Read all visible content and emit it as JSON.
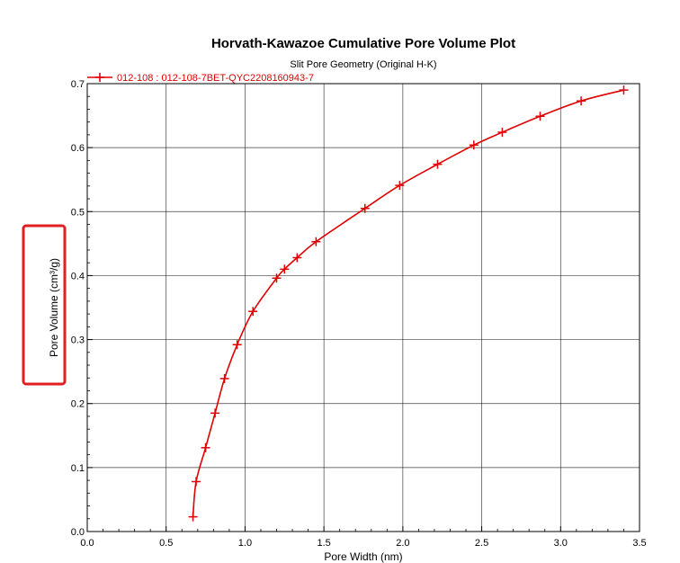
{
  "chart_data": {
    "type": "line",
    "title": "Horvath-Kawazoe Cumulative Pore Volume Plot",
    "subtitle": "Slit Pore Geometry (Original H-K)",
    "xlabel": "Pore Width (nm)",
    "ylabel": "Pore Volume (cm³/g)",
    "xlim": [
      0.0,
      3.5
    ],
    "ylim": [
      0.0,
      0.7
    ],
    "x_ticks": [
      "0.0",
      "0.5",
      "1.0",
      "1.5",
      "2.0",
      "2.5",
      "3.0",
      "3.5"
    ],
    "y_ticks": [
      "0.0",
      "0.1",
      "0.2",
      "0.3",
      "0.4",
      "0.5",
      "0.6",
      "0.7"
    ],
    "grid": true,
    "legend_position": "top-left",
    "highlight": "ylabel",
    "colors": {
      "series": "#e00000",
      "highlight_box": "#e02020"
    },
    "series": [
      {
        "name": "012-108 : 012-108-7BET-QYC2208160943-7",
        "marker": "plus",
        "points": [
          [
            0.67,
            0.023
          ],
          [
            0.69,
            0.078
          ],
          [
            0.75,
            0.131
          ],
          [
            0.81,
            0.185
          ],
          [
            0.87,
            0.239
          ],
          [
            0.95,
            0.292
          ],
          [
            1.05,
            0.344
          ],
          [
            1.2,
            0.396
          ],
          [
            1.25,
            0.41
          ],
          [
            1.33,
            0.428
          ],
          [
            1.45,
            0.453
          ],
          [
            1.76,
            0.505
          ],
          [
            1.98,
            0.541
          ],
          [
            2.22,
            0.574
          ],
          [
            2.45,
            0.604
          ],
          [
            2.63,
            0.624
          ],
          [
            2.87,
            0.649
          ],
          [
            3.13,
            0.673
          ],
          [
            3.4,
            0.69
          ]
        ]
      }
    ]
  }
}
